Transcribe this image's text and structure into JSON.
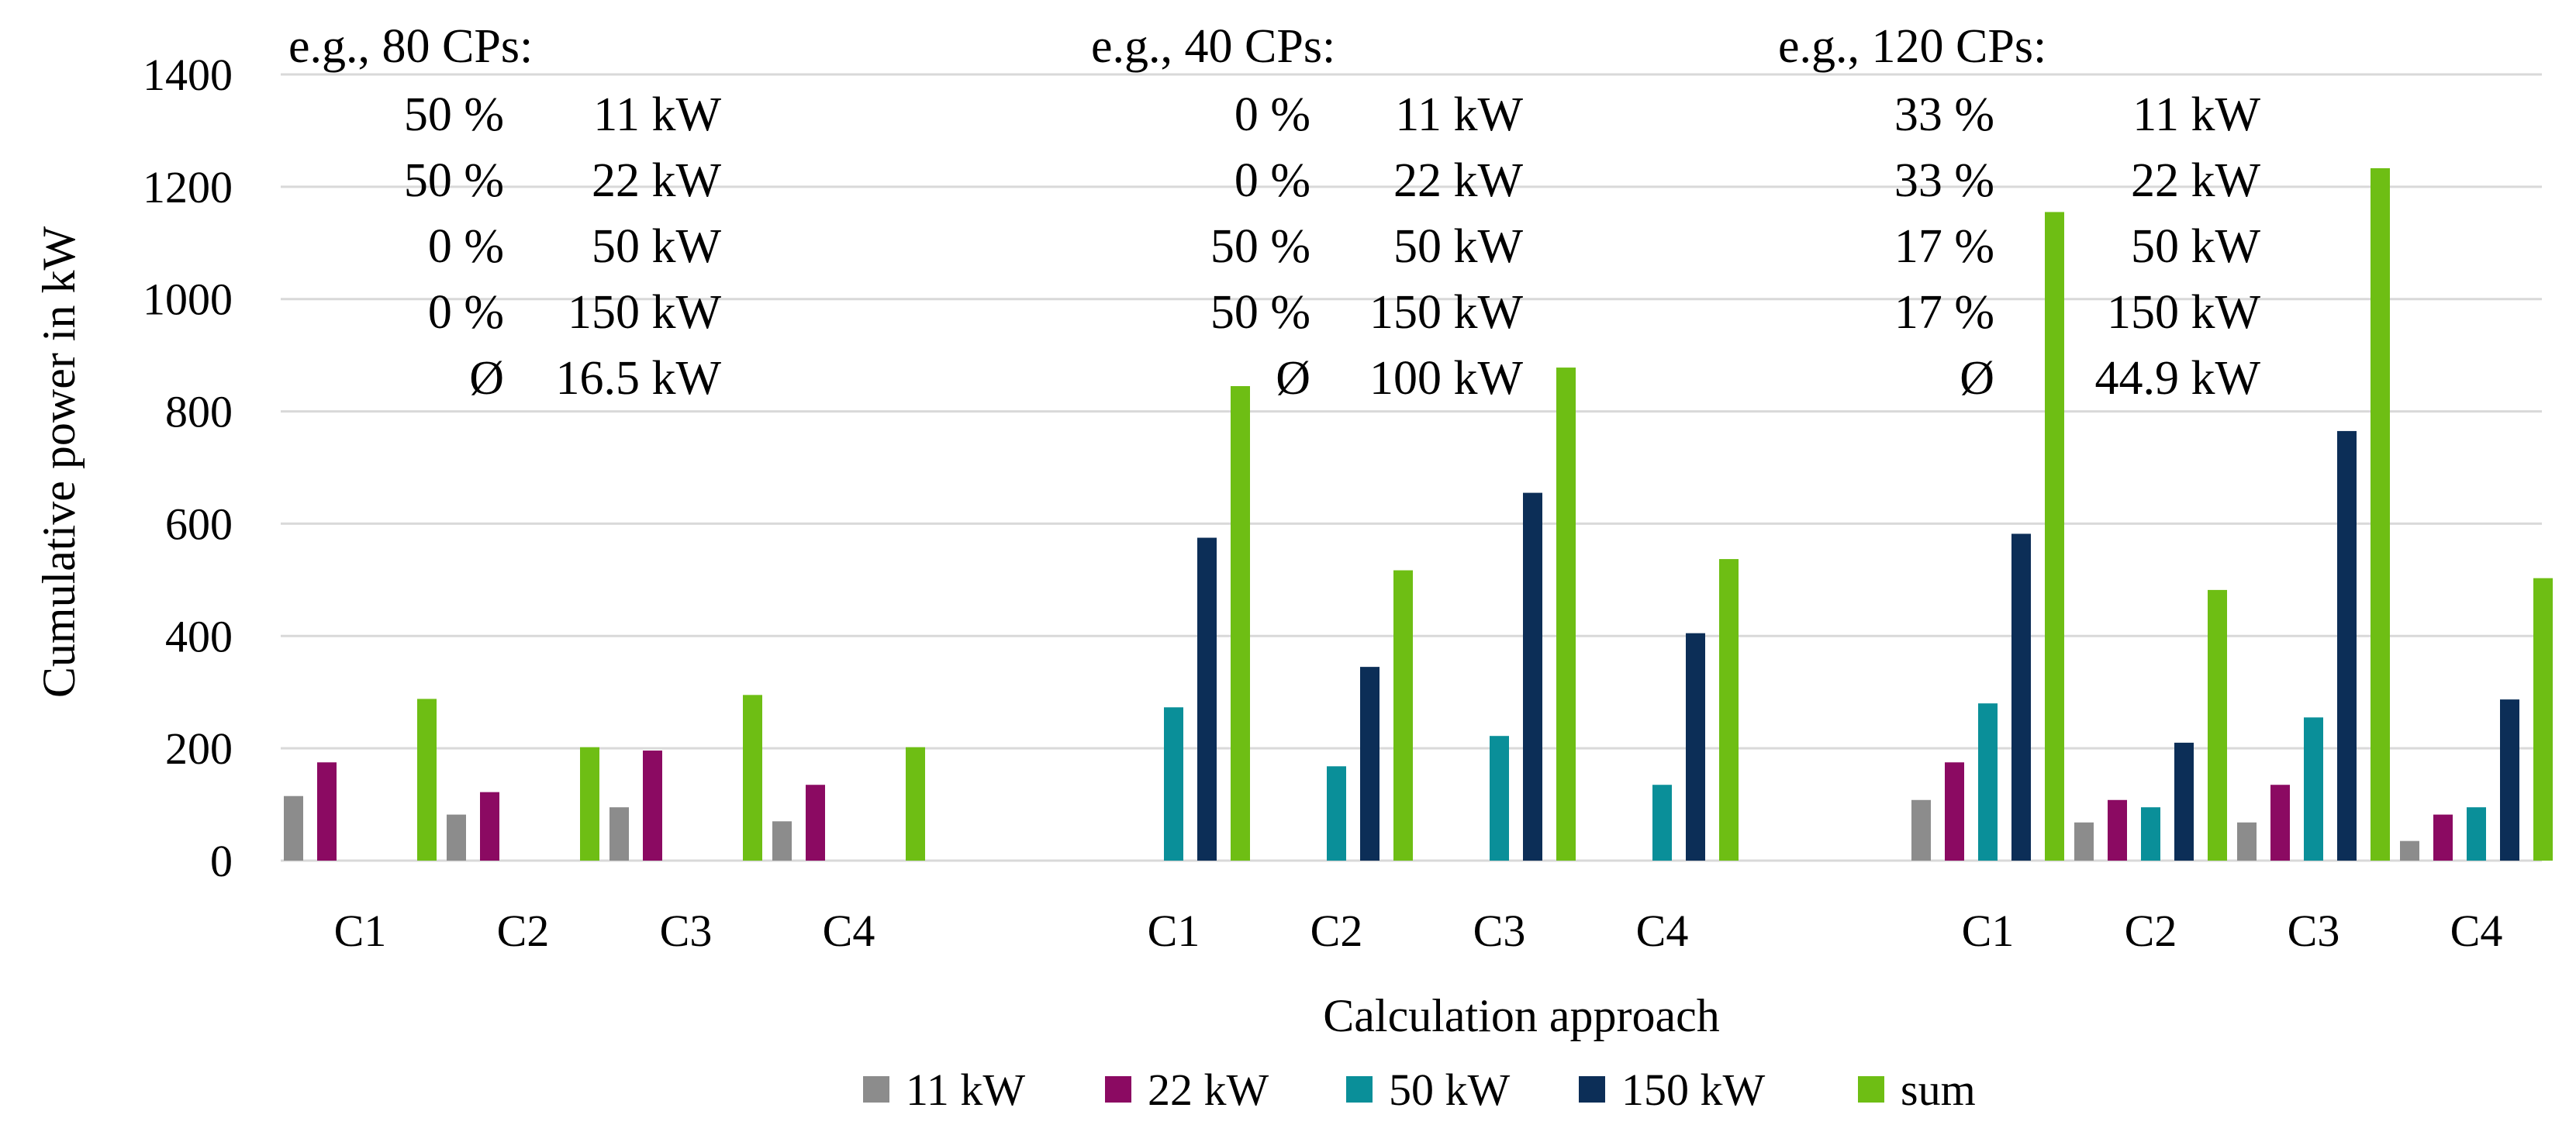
{
  "chart_data": {
    "type": "bar",
    "title": "",
    "xlabel": "Calculation  approach",
    "ylabel": "Cumulative  power in kW",
    "ylim": [
      0,
      1400
    ],
    "yticks": [
      "0",
      "200",
      "400",
      "600",
      "800",
      "1000",
      "1200",
      "1400"
    ],
    "grid": true,
    "legend_position": "bottom",
    "series_names": [
      "11 kW",
      "22 kW",
      "50 kW",
      "150 kW",
      "sum"
    ],
    "series_colors": [
      "#8c8c8c",
      "#8b0a62",
      "#0a8f99",
      "#0c2e57",
      "#6ebe14"
    ],
    "groups": [
      {
        "annotation": {
          "heading": "e.g., 80 CPs:",
          "rows": [
            {
              "share": "50 %",
              "power": "11 kW"
            },
            {
              "share": "50 %",
              "power": "22 kW"
            },
            {
              "share": "0 %",
              "power": "50 kW"
            },
            {
              "share": "0 %",
              "power": "150 kW"
            },
            {
              "share": "Ø",
              "power": "16.5 kW"
            }
          ]
        },
        "categories": [
          "C1",
          "C2",
          "C3",
          "C4"
        ],
        "values": [
          [
            115,
            175,
            0,
            0,
            288
          ],
          [
            82,
            122,
            0,
            0,
            202
          ],
          [
            95,
            196,
            0,
            0,
            295
          ],
          [
            70,
            135,
            0,
            0,
            202
          ]
        ]
      },
      {
        "annotation": {
          "heading": "e.g., 40 CPs:",
          "rows": [
            {
              "share": "0 %",
              "power": "11 kW"
            },
            {
              "share": "0 %",
              "power": "22 kW"
            },
            {
              "share": "50 %",
              "power": "50 kW"
            },
            {
              "share": "50 %",
              "power": "150 kW"
            },
            {
              "share": "Ø",
              "power": "100 kW"
            }
          ]
        },
        "categories": [
          "C1",
          "C2",
          "C3",
          "C4"
        ],
        "values": [
          [
            0,
            0,
            273,
            575,
            845
          ],
          [
            0,
            0,
            168,
            345,
            517
          ],
          [
            0,
            0,
            222,
            655,
            878
          ],
          [
            0,
            0,
            135,
            405,
            537
          ]
        ]
      },
      {
        "annotation": {
          "heading": "e.g., 120 CPs:",
          "rows": [
            {
              "share": "33 %",
              "power": "11 kW"
            },
            {
              "share": "33 %",
              "power": "22 kW"
            },
            {
              "share": "17 %",
              "power": "50 kW"
            },
            {
              "share": "17 %",
              "power": "150 kW"
            },
            {
              "share": "Ø",
              "power": "44.9 kW"
            }
          ]
        },
        "categories": [
          "C1",
          "C2",
          "C3",
          "C4"
        ],
        "values": [
          [
            108,
            175,
            280,
            582,
            1155
          ],
          [
            68,
            108,
            95,
            210,
            482
          ],
          [
            68,
            135,
            255,
            765,
            1233
          ],
          [
            35,
            82,
            95,
            287,
            503
          ]
        ]
      }
    ]
  }
}
